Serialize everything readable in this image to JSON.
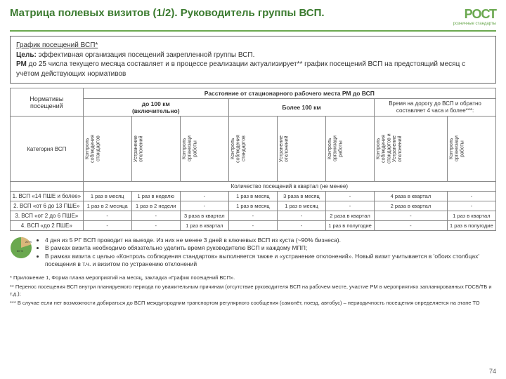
{
  "header": {
    "title": "Матрица полевых визитов (1/2). Руководитель группы ВСП.",
    "logo_main": "РОСТ",
    "logo_sub": "розничные стандарты"
  },
  "intro": {
    "l1_u": "График посещений ВСП*",
    "l2a": "Цель:",
    "l2b": " эффективная организация посещений закрепленной группы ВСП.",
    "l3a": "РМ",
    "l3b": " до 25 числа текущего месяца составляет и в процессе реализации актуализирует** график посещений ВСП на предстоящий месяц с учётом действующих нормативов"
  },
  "table": {
    "norm_label": "Нормативы\nпосещений",
    "cat_label": "Категория ВСП",
    "dist_header": "Расстояние от стационарного рабочего места РМ до ВСП",
    "dist1": "до 100 км\n(включительно)",
    "dist2": "Более 100 км",
    "time_note": "Время на дорогу до ВСП и обратно составляет 4 часа и более***:",
    "cols": [
      "Контроль\nсоблюдения\nстандартов",
      "Устранение\nотклонений",
      "Контроль\nорганизаци\nработы",
      "Контроль\nсоблюдения\nстандартов",
      "Устранение\nотклонений",
      "Контроль\nорганизаци\nработы",
      "Контроль\nсоблюдения\nстандартов и\nУстранение\nотклонений",
      "Контроль\nорганизаци\nработы"
    ],
    "count_header": "Количество посещений в квартал (не менее)",
    "rows": [
      {
        "label": "1. ВСП «14 ПШЕ и более»",
        "cells": [
          "1 раз в месяц",
          "1 раз в неделю",
          "-",
          "1 раз в месяц",
          "3 раза в месяц",
          "-",
          "4 раза в квартал",
          "-"
        ]
      },
      {
        "label": "2. ВСП «от 6 до 13 ПШЕ»",
        "cells": [
          "1 раз в 2 месяца",
          "1 раз в 2 недели",
          "-",
          "1 раз в месяц",
          "1 раз в месяц",
          "-",
          "2 раза в квартал",
          "-"
        ]
      },
      {
        "label": "3. ВСП «от 2 до 6 ПШЕ»",
        "cells": [
          "-",
          "-",
          "3 раза в квартал",
          "-",
          "-",
          "2 раза в квартал",
          "-",
          "1 раз в квартал"
        ]
      },
      {
        "label": "4. ВСП «до 2 ПШЕ»",
        "cells": [
          "-",
          "-",
          "1 раз в квартал",
          "-",
          "-",
          "1 раз в полугодие",
          "-",
          "1 раз в полугодие"
        ]
      }
    ]
  },
  "pie": {
    "pct_small": "20 %",
    "pct_big": "80 %",
    "color_small": "#d9b77a",
    "color_big": "#6aa84f"
  },
  "bullets": {
    "b1": "4 дня из 5 РГ ВСП проводит на выезде. Из них не менее 3 дней в ключевых ВСП из куста (~90% бизнеса).",
    "b2": "В рамках визита необходимо обязательно уделить время руководителю ВСП и каждому МПП;",
    "b3": "В рамках визита с целью «Контроль соблюдения стандартов» выполняется также и «устранение отклонений». Новый визит учитывается в 'обоих столбцах' посещения в т.ч. и визитом по устранению отклонений"
  },
  "footnotes": {
    "f1": "* Приложение 1, Форма плана мероприятий на месяц, закладка «График посещений ВСП».",
    "f2": "** Перенос посещения ВСП внутри планируемого периода по уважительным причинам (отсутствие руководителя ВСП на рабочем месте, участие РМ в мероприятиях запланированных ГОСБ/ТБ и т.д.);",
    "f3": "*** В случае если нет возможности добираться до ВСП междугородним транспортом регулярного сообщения (самолёт, поезд, автобус) – периодичность посещения определяется на этапе ТО"
  },
  "page": "74",
  "colors": {
    "brand": "#6aa84f"
  }
}
